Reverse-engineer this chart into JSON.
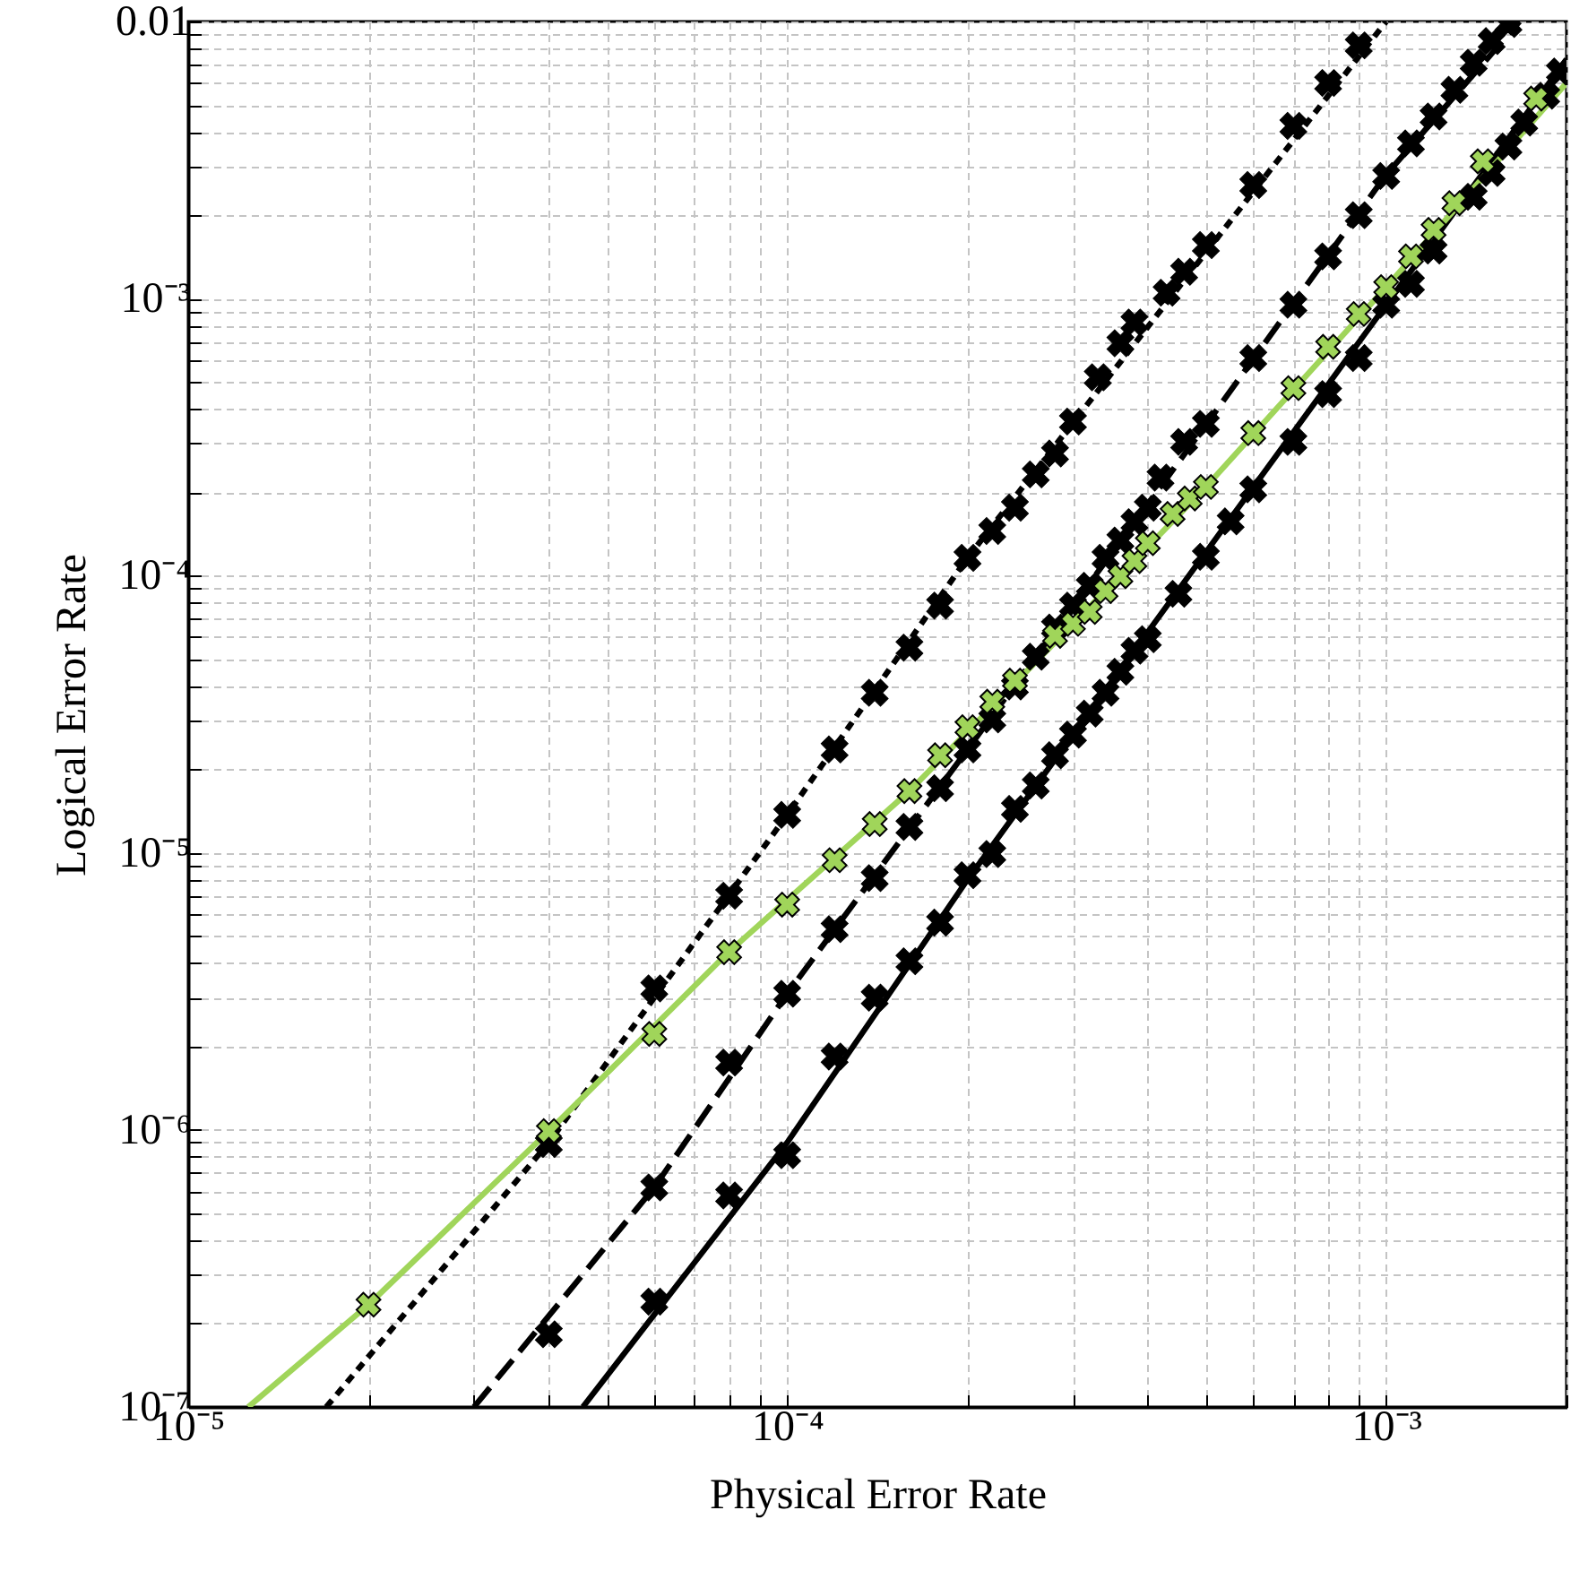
{
  "chart_data": {
    "type": "line",
    "xlabel": "Physical Error Rate",
    "ylabel": "Logical Error Rate",
    "log": "xy",
    "grid": true,
    "xlim": [
      1e-05,
      0.002
    ],
    "xticks": [
      {
        "value": 1e-05,
        "label": "10⁻⁵"
      },
      {
        "value": 2e-05,
        "label": null
      },
      {
        "value": 3e-05,
        "label": null
      },
      {
        "value": 4e-05,
        "label": null
      },
      {
        "value": 5e-05,
        "label": null
      },
      {
        "value": 6e-05,
        "label": null
      },
      {
        "value": 7e-05,
        "label": null
      },
      {
        "value": 8e-05,
        "label": null
      },
      {
        "value": 9e-05,
        "label": null
      },
      {
        "value": 0.0001,
        "label": "10⁻⁴"
      },
      {
        "value": 0.0002,
        "label": null
      },
      {
        "value": 0.0003,
        "label": null
      },
      {
        "value": 0.0004,
        "label": null
      },
      {
        "value": 0.0005,
        "label": null
      },
      {
        "value": 0.0006,
        "label": null
      },
      {
        "value": 0.0007,
        "label": null
      },
      {
        "value": 0.0008,
        "label": null
      },
      {
        "value": 0.0009,
        "label": null
      },
      {
        "value": 0.001,
        "label": "10⁻³"
      },
      {
        "value": 0.002,
        "label": null
      }
    ],
    "ylim": [
      1e-07,
      0.01
    ],
    "yticks": [
      {
        "value": 1e-07,
        "label": "10⁻⁷"
      },
      {
        "value": 2e-07,
        "label": null
      },
      {
        "value": 3e-07,
        "label": null
      },
      {
        "value": 4e-07,
        "label": null
      },
      {
        "value": 5e-07,
        "label": null
      },
      {
        "value": 6e-07,
        "label": null
      },
      {
        "value": 7e-07,
        "label": null
      },
      {
        "value": 8e-07,
        "label": null
      },
      {
        "value": 9e-07,
        "label": null
      },
      {
        "value": 1e-06,
        "label": "10⁻⁶"
      },
      {
        "value": 2e-06,
        "label": null
      },
      {
        "value": 3e-06,
        "label": null
      },
      {
        "value": 4e-06,
        "label": null
      },
      {
        "value": 5e-06,
        "label": null
      },
      {
        "value": 6e-06,
        "label": null
      },
      {
        "value": 7e-06,
        "label": null
      },
      {
        "value": 8e-06,
        "label": null
      },
      {
        "value": 9e-06,
        "label": null
      },
      {
        "value": 1e-05,
        "label": "10⁻⁵"
      },
      {
        "value": 2e-05,
        "label": null
      },
      {
        "value": 3e-05,
        "label": null
      },
      {
        "value": 4e-05,
        "label": null
      },
      {
        "value": 5e-05,
        "label": null
      },
      {
        "value": 6e-05,
        "label": null
      },
      {
        "value": 7e-05,
        "label": null
      },
      {
        "value": 8e-05,
        "label": null
      },
      {
        "value": 9e-05,
        "label": null
      },
      {
        "value": 0.0001,
        "label": "10⁻⁴"
      },
      {
        "value": 0.0002,
        "label": null
      },
      {
        "value": 0.0003,
        "label": null
      },
      {
        "value": 0.0004,
        "label": null
      },
      {
        "value": 0.0005,
        "label": null
      },
      {
        "value": 0.0006,
        "label": null
      },
      {
        "value": 0.0007,
        "label": null
      },
      {
        "value": 0.0008,
        "label": null
      },
      {
        "value": 0.0009,
        "label": null
      },
      {
        "value": 0.001,
        "label": "10⁻³"
      },
      {
        "value": 0.002,
        "label": null
      },
      {
        "value": 0.003,
        "label": null
      },
      {
        "value": 0.004,
        "label": null
      },
      {
        "value": 0.005,
        "label": null
      },
      {
        "value": 0.006,
        "label": null
      },
      {
        "value": 0.007,
        "label": null
      },
      {
        "value": 0.008,
        "label": null
      },
      {
        "value": 0.009,
        "label": null
      },
      {
        "value": 0.01,
        "label": "0.01"
      }
    ],
    "series": [
      {
        "color": "#000000",
        "line_style": "dotted",
        "marker": "none",
        "x": [
          1.7e-05,
          4e-05,
          0.0001,
          0.0002,
          0.001
        ],
        "values": [
          1e-07,
          9e-07,
          1.37e-05,
          0.000116,
          0.01
        ]
      },
      {
        "color": "#000000",
        "line_style": "dashed",
        "marker": "none",
        "x": [
          3e-05,
          6e-05,
          0.0001,
          0.0002,
          0.0005,
          0.001,
          0.00167
        ],
        "values": [
          1e-07,
          6.2e-07,
          3.1e-06,
          2.36e-05,
          0.00035,
          0.0028,
          0.01
        ]
      },
      {
        "color": "#000000",
        "line_style": "solid",
        "marker": "none",
        "x": [
          4.56e-05,
          0.0001,
          0.0002,
          0.001,
          0.002
        ],
        "values": [
          1e-07,
          9e-07,
          8e-06,
          0.00095,
          0.0073
        ]
      },
      {
        "color": "#a0d55a",
        "line_style": "solid",
        "marker": "none",
        "x": [
          1.26e-05,
          2e-05,
          4e-05,
          8e-05,
          0.00016,
          0.0003,
          0.0005,
          0.001,
          0.002
        ],
        "values": [
          1e-07,
          2.34e-07,
          9.9e-07,
          4.4e-06,
          1.67e-05,
          6.7e-05,
          0.000209,
          0.0011,
          0.006
        ]
      },
      {
        "type": "scatter",
        "color": "#000000",
        "marker": "cross",
        "x": [
          4e-05,
          6e-05,
          8e-05,
          0.0001,
          0.00012,
          0.00014,
          0.00016,
          0.00018,
          0.0002,
          0.00022,
          0.00024,
          0.00026,
          0.00028,
          0.0003,
          0.00033,
          0.00036,
          0.00038,
          0.00043,
          0.00046,
          0.0005,
          0.0006,
          0.0007,
          0.0008,
          0.0009
        ],
        "values": [
          8.9e-07,
          3.24e-06,
          7e-06,
          1.37e-05,
          2.36e-05,
          3.78e-05,
          5.5e-05,
          7.8e-05,
          0.000116,
          0.000145,
          0.000176,
          0.000232,
          0.000276,
          0.00036,
          0.00052,
          0.00069,
          0.00082,
          0.00105,
          0.00125,
          0.00156,
          0.00257,
          0.0042,
          0.006,
          0.0082
        ]
      },
      {
        "type": "scatter",
        "color": "#000000",
        "marker": "cross",
        "x": [
          4e-05,
          6e-05,
          8e-05,
          0.0001,
          0.00012,
          0.00014,
          0.00016,
          0.00018,
          0.0002,
          0.00022,
          0.00024,
          0.00026,
          0.00028,
          0.0003,
          0.00032,
          0.00034,
          0.00036,
          0.00038,
          0.0004,
          0.00042,
          0.00046,
          0.0005,
          0.0006,
          0.0007,
          0.0008,
          0.0009,
          0.001,
          0.0011,
          0.0012,
          0.0013,
          0.0014,
          0.0015,
          0.0016
        ],
        "values": [
          1.83e-07,
          6.2e-07,
          1.75e-06,
          3.1e-06,
          5.3e-06,
          8.1e-06,
          1.24e-05,
          1.71e-05,
          2.36e-05,
          3.03e-05,
          3.98e-05,
          5.1e-05,
          6.5e-05,
          7.8e-05,
          9.2e-05,
          0.000116,
          0.000134,
          0.000156,
          0.000176,
          0.000226,
          0.000304,
          0.000353,
          0.00061,
          0.00095,
          0.00142,
          0.002,
          0.00277,
          0.00363,
          0.00454,
          0.00567,
          0.0071,
          0.0085,
          0.0098
        ]
      },
      {
        "type": "scatter",
        "color": "#000000",
        "marker": "cross",
        "x": [
          6e-05,
          8e-05,
          0.0001,
          0.00012,
          0.00014,
          0.00016,
          0.00018,
          0.0002,
          0.00022,
          0.00024,
          0.00026,
          0.00028,
          0.0003,
          0.00032,
          0.00034,
          0.00036,
          0.00038,
          0.0004,
          0.00045,
          0.0005,
          0.00055,
          0.0006,
          0.0007,
          0.0008,
          0.0009,
          0.001,
          0.0011,
          0.0012,
          0.0014,
          0.0015,
          0.0016,
          0.0017,
          0.00185,
          0.00195
        ],
        "values": [
          2.4e-07,
          5.8e-07,
          8.1e-07,
          1.84e-06,
          3e-06,
          4.06e-06,
          5.6e-06,
          8.3e-06,
          9.9e-06,
          1.44e-05,
          1.75e-05,
          2.25e-05,
          2.67e-05,
          3.18e-05,
          3.78e-05,
          4.5e-05,
          5.36e-05,
          5.9e-05,
          8.6e-05,
          0.000117,
          0.000157,
          0.000205,
          0.000304,
          0.000452,
          0.00061,
          0.00095,
          0.00113,
          0.00149,
          0.00233,
          0.00284,
          0.00354,
          0.00432,
          0.0054,
          0.0066
        ]
      },
      {
        "type": "scatter",
        "color": "#a0d55a",
        "marker": "cross",
        "x": [
          2e-05,
          4e-05,
          6e-05,
          8e-05,
          0.0001,
          0.00012,
          0.00014,
          0.00016,
          0.00018,
          0.0002,
          0.00022,
          0.00024,
          0.00028,
          0.0003,
          0.00032,
          0.00034,
          0.00036,
          0.00038,
          0.0004,
          0.00044,
          0.00047,
          0.0005,
          0.0006,
          0.0007,
          0.0008,
          0.0009,
          0.001,
          0.0011,
          0.0012,
          0.0013,
          0.00145,
          0.00178
        ],
        "values": [
          2.34e-07,
          9.9e-07,
          2.22e-06,
          4.38e-06,
          6.5e-06,
          9.4e-06,
          1.27e-05,
          1.67e-05,
          2.25e-05,
          2.84e-05,
          3.51e-05,
          4.18e-05,
          6.07e-05,
          6.7e-05,
          7.4e-05,
          8.8e-05,
          9.96e-05,
          0.000113,
          0.000131,
          0.000167,
          0.00019,
          0.000209,
          0.000327,
          0.000475,
          0.00067,
          0.00088,
          0.0011,
          0.00142,
          0.00177,
          0.00221,
          0.00313,
          0.00527
        ]
      }
    ]
  }
}
